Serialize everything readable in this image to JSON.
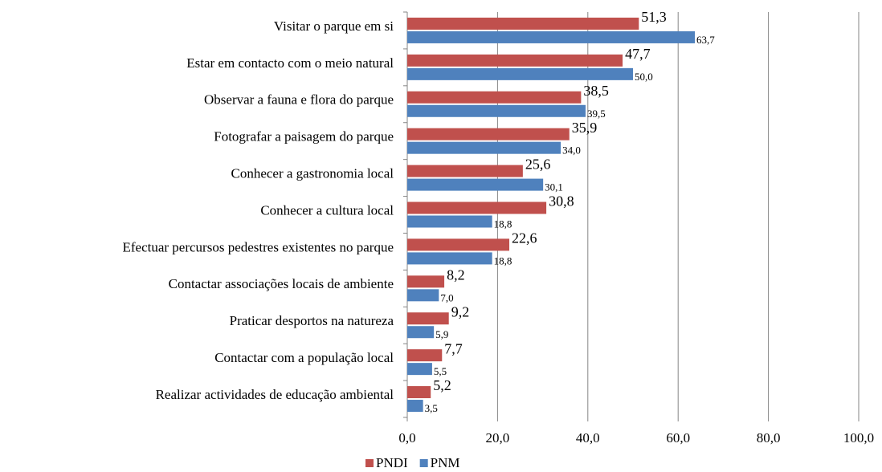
{
  "chart_data": {
    "type": "hbar",
    "categories": [
      "Visitar o parque em si",
      "Estar em contacto com o meio natural",
      "Observar a fauna e flora do parque",
      "Fotografar a paisagem do parque",
      "Conhecer a gastronomia local",
      "Conhecer a cultura local",
      "Efectuar percursos pedestres existentes no parque",
      "Contactar associações locais de ambiente",
      "Praticar desportos na natureza",
      "Contactar com a população local",
      "Realizar actividades de educação ambiental"
    ],
    "series": [
      {
        "name": "PNDI",
        "color": "#c0504d",
        "values": [
          51.3,
          47.7,
          38.5,
          35.9,
          25.6,
          30.8,
          22.6,
          8.2,
          9.2,
          7.7,
          5.2
        ],
        "value_labels": [
          "51,3",
          "47,7",
          "38,5",
          "35,9",
          "25,6",
          "30,8",
          "22,6",
          "8,2",
          "9,2",
          "7,7",
          "5,2"
        ]
      },
      {
        "name": "PNM",
        "color": "#4f81bd",
        "values": [
          63.7,
          50.0,
          39.5,
          34.0,
          30.1,
          18.8,
          18.8,
          7.0,
          5.9,
          5.5,
          3.5
        ],
        "value_labels": [
          "63,7",
          "50,0",
          "39,5",
          "34,0",
          "30,1",
          "18,8",
          "18,8",
          "7,0",
          "5,9",
          "5,5",
          "3,5"
        ]
      }
    ],
    "xlim": [
      0,
      100
    ],
    "xticks": [
      {
        "value": 0,
        "label": "0,0"
      },
      {
        "value": 20,
        "label": "20,0"
      },
      {
        "value": 40,
        "label": "40,0"
      },
      {
        "value": 60,
        "label": "60,0"
      },
      {
        "value": 80,
        "label": "80,0"
      },
      {
        "value": 100,
        "label": "100,0"
      }
    ],
    "grid": true,
    "legend": "bottom"
  }
}
